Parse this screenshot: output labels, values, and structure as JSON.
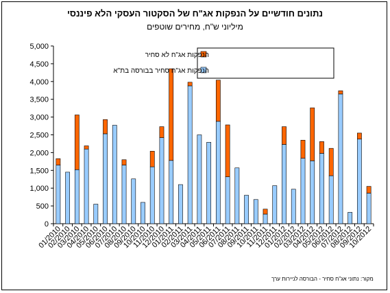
{
  "header": {
    "title": "נתונים חודשיים על הנפקות אג\"ח של הסקטור העסקי הלא פיננסי",
    "subtitle": "מיליוני ש\"ח, מחירים שוטפים"
  },
  "source_note": "מקור: נתוני אג\"ח סחיר - הבורסה לניירות ערך",
  "colors": {
    "listed": "#99CCFF",
    "unlisted": "#FF6600",
    "outline": "#000000"
  },
  "chart_data": {
    "type": "bar",
    "stacked": true,
    "categories": [
      "01/2010",
      "02/2010",
      "03/2010",
      "04/2010",
      "05/2010",
      "06/2010",
      "07/2010",
      "08/2010",
      "09/2010",
      "10/2010",
      "11/2010",
      "12/2010",
      "01/2011",
      "02/2011",
      "03/2011",
      "04/2011",
      "05/2011",
      "06/2011",
      "07/2011",
      "08/2011",
      "09/2011",
      "10/2011",
      "11/2011",
      "12/2011",
      "01/2012",
      "02/2012",
      "03/2012",
      "04/2012",
      "05/2012",
      "06/2012",
      "07/2012",
      "08/2012",
      "09/2012",
      "10/2012"
    ],
    "tick_labels": [
      "01/2010",
      "02/2010",
      "03/2010",
      "04/2010",
      "05/2010",
      "06/2010",
      "07/2010",
      "08/2010",
      "09/2010",
      "10/2010",
      "11/2010",
      "12/2010",
      "01/2011",
      "02/2011",
      "03/2011",
      "04/2011",
      "05/2011",
      "06/2011",
      "07/2011",
      "08/2011",
      "09/2011",
      "10/2011",
      "11/2011",
      "12/2011",
      "01/2012",
      "02/2012",
      "03/2012",
      "04/2012",
      "05/2012",
      "06/2012",
      "07/2012",
      "08/2012",
      "09/2012",
      "10/2012"
    ],
    "series": [
      {
        "name": "הנפקות אג\"ח סחיר בבורסה בת\"א",
        "color": "#99CCFF",
        "values": [
          1650,
          1450,
          1520,
          2100,
          550,
          2530,
          2770,
          1650,
          1260,
          600,
          1600,
          2420,
          1780,
          1100,
          3880,
          2500,
          2290,
          2880,
          1320,
          1570,
          800,
          680,
          270,
          1070,
          2230,
          970,
          1840,
          1770,
          1980,
          1350,
          3650,
          320,
          2380,
          860
        ]
      },
      {
        "name": "הנפקות אג\"ח לא סחיר",
        "color": "#FF6600",
        "values": [
          180,
          0,
          1540,
          90,
          0,
          400,
          0,
          150,
          0,
          0,
          440,
          310,
          2580,
          0,
          100,
          0,
          0,
          1160,
          1460,
          0,
          0,
          0,
          140,
          0,
          500,
          0,
          510,
          1490,
          330,
          770,
          90,
          0,
          170,
          190
        ]
      }
    ],
    "ylim": [
      0,
      5000
    ],
    "yticks": [
      "0",
      "500",
      "1,000",
      "1,500",
      "2,000",
      "2,500",
      "3,000",
      "3,500",
      "4,000",
      "4,500",
      "5,000"
    ],
    "grid": false,
    "legend": "top-right"
  }
}
